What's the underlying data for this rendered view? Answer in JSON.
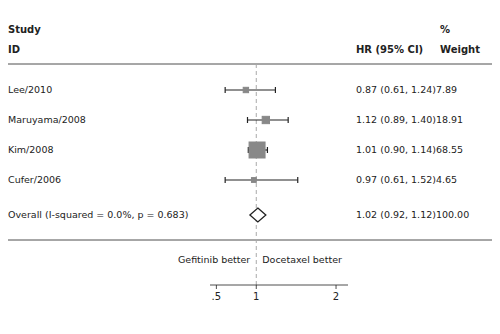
{
  "chart_data": {
    "type": "forest",
    "categories": [
      "Lee/2010",
      "Maruyama/2008",
      "Kim/2008",
      "Cufer/2006"
    ],
    "values": [
      0.87,
      1.12,
      1.01,
      0.97
    ],
    "ci_low": [
      0.61,
      0.89,
      0.9,
      0.61
    ],
    "ci_high": [
      1.24,
      1.4,
      1.14,
      1.52
    ],
    "weights": [
      7.89,
      18.91,
      68.55,
      4.65
    ],
    "value_labels": [
      "0.87 (0.61, 1.24)7.89",
      "1.12 (0.89, 1.40)18.91",
      "1.01 (0.90, 1.14)68.55",
      "0.97 (0.61, 1.52)4.65"
    ],
    "overall": {
      "name": "Overall (I-squared = 0.0%, p = 0.683)",
      "value": 1.02,
      "ci_low": 0.92,
      "ci_high": 1.12,
      "label": "1.02 (0.92, 1.12)100.00"
    },
    "column_headers": [
      "Study",
      "%",
      "ID",
      "HR (95% CI)",
      "Weight"
    ],
    "annotations": [
      "Gefitinib better",
      "Docetaxel better"
    ],
    "reference_line": 1.0,
    "xlim": [
      0.42,
      2.15
    ],
    "xticks": [
      {
        "value": 0.5,
        "label": ".5"
      },
      1,
      2
    ],
    "color": "#888888",
    "grid": false
  }
}
